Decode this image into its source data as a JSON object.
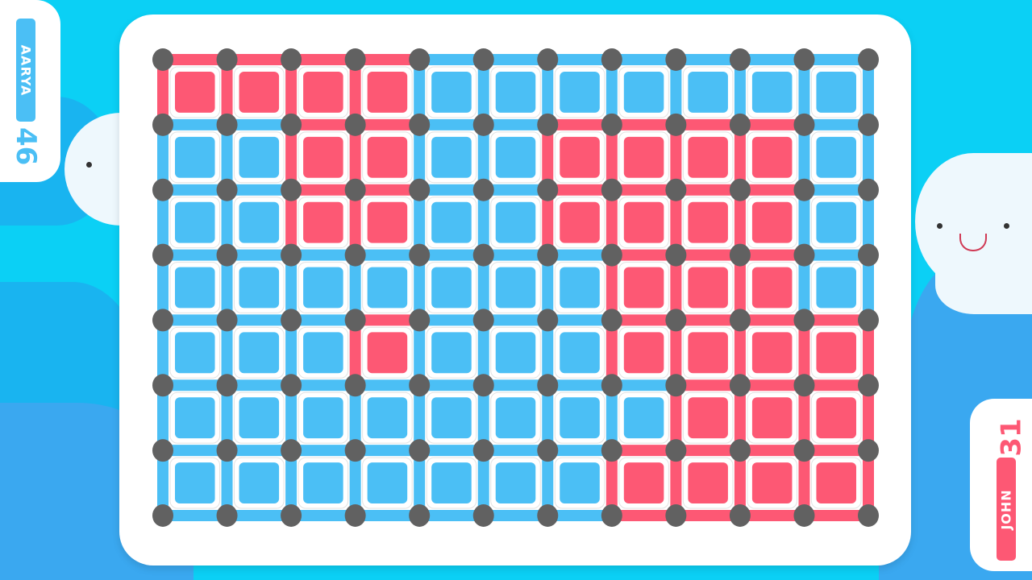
{
  "colors": {
    "background": "#0bd0f5",
    "blue_player": "#4bbff5",
    "red_player": "#fd5874",
    "dot": "#616161",
    "board": "#ffffff"
  },
  "players": [
    {
      "name": "AARYA",
      "score": "46",
      "color": "#4bbff5"
    },
    {
      "name": "JOHN",
      "score": "31",
      "color": "#fd5874"
    }
  ],
  "grid": {
    "dot_columns": 12,
    "dot_rows": 8,
    "boxes": [
      [
        "R",
        "R",
        "R",
        "R",
        "B",
        "B",
        "B",
        "B",
        "B",
        "B",
        "B"
      ],
      [
        "B",
        "B",
        "R",
        "R",
        "B",
        "B",
        "R",
        "R",
        "R",
        "R",
        "B"
      ],
      [
        "B",
        "B",
        "R",
        "R",
        "B",
        "B",
        "R",
        "R",
        "R",
        "R",
        "B"
      ],
      [
        "B",
        "B",
        "B",
        "B",
        "B",
        "B",
        "B",
        "R",
        "R",
        "R",
        "B"
      ],
      [
        "B",
        "B",
        "B",
        "R",
        "B",
        "B",
        "B",
        "R",
        "R",
        "R",
        "R"
      ],
      [
        "B",
        "B",
        "B",
        "B",
        "B",
        "B",
        "B",
        "B",
        "R",
        "R",
        "R"
      ],
      [
        "B",
        "B",
        "B",
        "B",
        "B",
        "B",
        "B",
        "R",
        "R",
        "R",
        "R"
      ]
    ]
  }
}
